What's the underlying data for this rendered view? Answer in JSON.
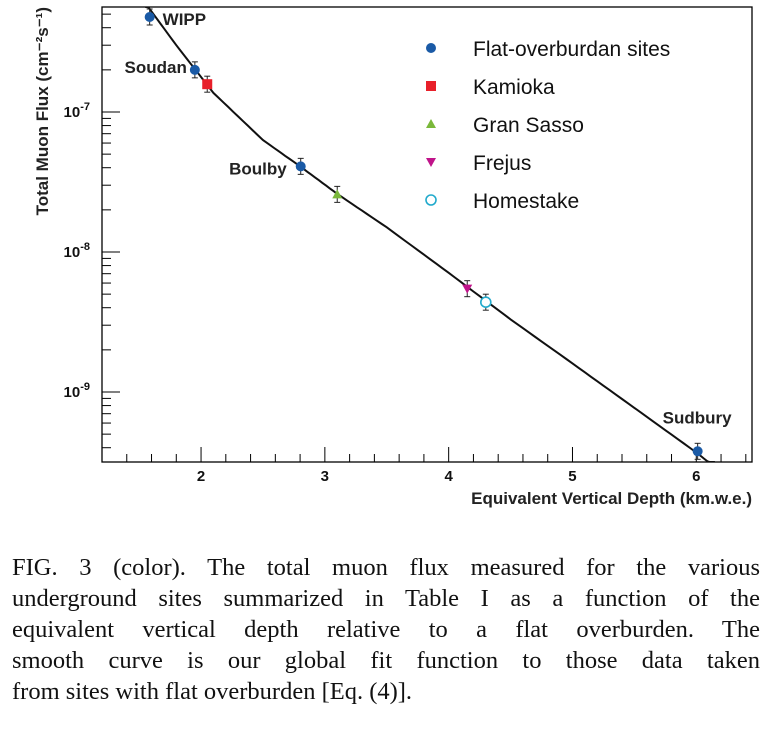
{
  "chart_data": {
    "type": "scatter",
    "xlabel": "Equivalent Vertical Depth (km.w.e.)",
    "ylabel": "Total Muon Flux (cm⁻²s⁻¹)",
    "xlim": [
      1.2,
      6.45
    ],
    "ylim_exponent": [
      -9.5,
      -6.25
    ],
    "y_scale": "log",
    "x_ticks": [
      2,
      3,
      4,
      5,
      6
    ],
    "x_tick_labels": [
      "2",
      "3",
      "4",
      "5",
      "6"
    ],
    "y_ticks": [
      -7,
      -8,
      -9
    ],
    "y_tick_labels": [
      "10-7",
      "10-8",
      "10-9"
    ],
    "legend_placement": "top-right",
    "series": [
      {
        "name": "Flat-overburdan sites",
        "marker": "circle",
        "color": "#1a5aa6",
        "points": [
          {
            "x": 1.585,
            "y": 4.77e-07,
            "label": "WIPP"
          },
          {
            "x": 1.95,
            "y": 2e-07,
            "label": "Soudan"
          },
          {
            "x": 2.805,
            "y": 4.09e-08,
            "label": "Boulby"
          },
          {
            "x": 6.011,
            "y": 3.77e-10,
            "label": "Sudbury"
          }
        ]
      },
      {
        "name": "Kamioka",
        "marker": "square",
        "color": "#e8202a",
        "points": [
          {
            "x": 2.05,
            "y": 1.58e-07
          }
        ]
      },
      {
        "name": "Gran Sasso",
        "marker": "triangle-up",
        "color": "#7ab83a",
        "points": [
          {
            "x": 3.1,
            "y": 2.58e-08
          }
        ]
      },
      {
        "name": "Frejus",
        "marker": "triangle-down",
        "color": "#c0148a",
        "points": [
          {
            "x": 4.15,
            "y": 5.47e-09
          }
        ]
      },
      {
        "name": "Homestake",
        "marker": "open-circle",
        "color": "#22aacc",
        "points": [
          {
            "x": 4.3,
            "y": 4.38e-09
          }
        ]
      }
    ],
    "fit_curve_points": [
      [
        1.55,
        6e-07
      ],
      [
        1.8,
        3e-07
      ],
      [
        2.1,
        1.37e-07
      ],
      [
        2.5,
        6.3e-08
      ],
      [
        2.8,
        4.09e-08
      ],
      [
        3.1,
        2.6e-08
      ],
      [
        3.5,
        1.5e-08
      ],
      [
        4.0,
        7.1e-09
      ],
      [
        4.5,
        3.3e-09
      ],
      [
        5.0,
        1.6e-09
      ],
      [
        5.5,
        7.7e-10
      ],
      [
        6.0,
        3.7e-10
      ],
      [
        6.15,
        2.9e-10
      ]
    ]
  },
  "caption": {
    "lines": [
      "FIG. 3 (color).  The total muon flux measured for the various",
      "underground sites summarized in Table I as a function of the",
      "equivalent vertical depth relative to a flat overburden. The",
      "smooth curve is our global fit function to those data taken",
      "from sites with flat overburden [Eq. (4)]."
    ]
  }
}
